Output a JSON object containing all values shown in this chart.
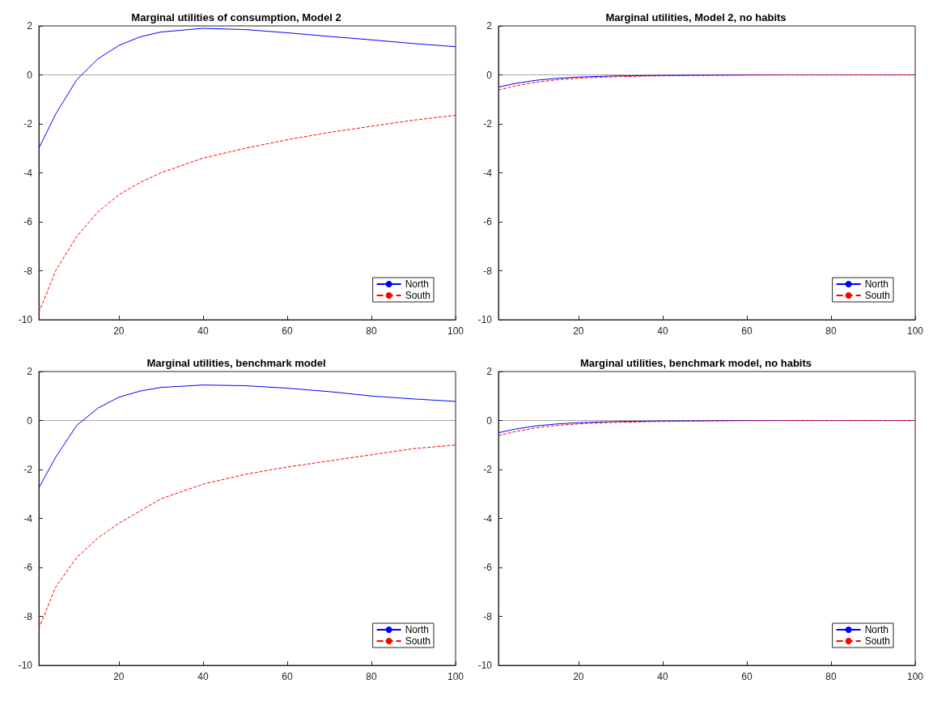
{
  "chart_data": [
    {
      "type": "line",
      "title": "Marginal utilities of consumption, Model 2",
      "x": [
        1,
        5,
        10,
        15,
        20,
        25,
        30,
        40,
        50,
        60,
        70,
        80,
        90,
        100
      ],
      "xlim": [
        1,
        100
      ],
      "xticks": [
        20,
        40,
        60,
        80,
        100
      ],
      "ylim": [
        -10,
        2
      ],
      "yticks": [
        -10,
        -8,
        -6,
        -4,
        -2,
        0,
        2
      ],
      "grid": false,
      "legend": "bottom right",
      "marker": "none",
      "ref_lines": [
        {
          "axis": "y",
          "value": 0,
          "line_style": "dotted",
          "color": "#000000"
        }
      ],
      "series": [
        {
          "name": "North",
          "color": "#0000ff",
          "line_style": "solid",
          "values": [
            -3,
            -1.6,
            -0.2,
            0.65,
            1.2,
            1.55,
            1.75,
            1.9,
            1.85,
            1.72,
            1.57,
            1.43,
            1.28,
            1.15
          ]
        },
        {
          "name": "South",
          "color": "#ff0000",
          "line_style": "dashed",
          "values": [
            -9.7,
            -8.0,
            -6.6,
            -5.6,
            -4.9,
            -4.4,
            -4.0,
            -3.4,
            -3.0,
            -2.65,
            -2.35,
            -2.1,
            -1.85,
            -1.65
          ]
        }
      ]
    },
    {
      "type": "line",
      "title": "Marginal utilities, Model 2, no habits",
      "x": [
        1,
        5,
        10,
        15,
        20,
        25,
        30,
        40,
        50,
        60,
        70,
        80,
        90,
        100
      ],
      "xlim": [
        1,
        100
      ],
      "xticks": [
        20,
        40,
        60,
        80,
        100
      ],
      "ylim": [
        -10,
        2
      ],
      "yticks": [
        -10,
        -8,
        -6,
        -4,
        -2,
        0,
        2
      ],
      "grid": false,
      "legend": "bottom right",
      "marker": "none",
      "ref_lines": [
        {
          "axis": "y",
          "value": 0,
          "line_style": "dotted",
          "color": "#000000"
        }
      ],
      "series": [
        {
          "name": "North",
          "color": "#0000ff",
          "line_style": "solid",
          "values": [
            -0.5,
            -0.35,
            -0.22,
            -0.14,
            -0.09,
            -0.06,
            -0.04,
            -0.02,
            -0.01,
            0,
            0,
            0,
            0,
            0
          ]
        },
        {
          "name": "South",
          "color": "#ff0000",
          "line_style": "dashed",
          "values": [
            -0.62,
            -0.45,
            -0.3,
            -0.2,
            -0.14,
            -0.1,
            -0.07,
            -0.04,
            -0.02,
            -0.01,
            0,
            0,
            0,
            0
          ]
        }
      ]
    },
    {
      "type": "line",
      "title": "Marginal utilities, benchmark model",
      "x": [
        1,
        5,
        10,
        15,
        20,
        25,
        30,
        40,
        50,
        60,
        70,
        80,
        90,
        100
      ],
      "xlim": [
        1,
        100
      ],
      "xticks": [
        20,
        40,
        60,
        80,
        100
      ],
      "ylim": [
        -10,
        2
      ],
      "yticks": [
        -10,
        -8,
        -6,
        -4,
        -2,
        0,
        2
      ],
      "grid": false,
      "legend": "bottom right",
      "marker": "none",
      "ref_lines": [
        {
          "axis": "y",
          "value": 0,
          "line_style": "dotted",
          "color": "#000000"
        }
      ],
      "series": [
        {
          "name": "North",
          "color": "#0000ff",
          "line_style": "solid",
          "values": [
            -2.75,
            -1.5,
            -0.2,
            0.5,
            0.95,
            1.2,
            1.35,
            1.45,
            1.42,
            1.32,
            1.18,
            1.0,
            0.88,
            0.78
          ]
        },
        {
          "name": "South",
          "color": "#ff0000",
          "line_style": "dashed",
          "values": [
            -8.5,
            -6.8,
            -5.6,
            -4.8,
            -4.2,
            -3.7,
            -3.2,
            -2.6,
            -2.2,
            -1.9,
            -1.65,
            -1.4,
            -1.15,
            -1.0
          ]
        }
      ]
    },
    {
      "type": "line",
      "title": "Marginal utilities, benchmark model, no habits",
      "x": [
        1,
        5,
        10,
        15,
        20,
        25,
        30,
        40,
        50,
        60,
        70,
        80,
        90,
        100
      ],
      "xlim": [
        1,
        100
      ],
      "xticks": [
        20,
        40,
        60,
        80,
        100
      ],
      "ylim": [
        -10,
        2
      ],
      "yticks": [
        -10,
        -8,
        -6,
        -4,
        -2,
        0,
        2
      ],
      "grid": false,
      "legend": "bottom right",
      "marker": "none",
      "ref_lines": [
        {
          "axis": "y",
          "value": 0,
          "line_style": "dotted",
          "color": "#000000"
        }
      ],
      "series": [
        {
          "name": "North",
          "color": "#0000ff",
          "line_style": "solid",
          "values": [
            -0.5,
            -0.35,
            -0.22,
            -0.14,
            -0.09,
            -0.06,
            -0.04,
            -0.02,
            -0.01,
            0,
            0,
            0,
            0,
            0
          ]
        },
        {
          "name": "South",
          "color": "#ff0000",
          "line_style": "dashed",
          "values": [
            -0.62,
            -0.45,
            -0.3,
            -0.2,
            -0.14,
            -0.1,
            -0.07,
            -0.04,
            -0.02,
            -0.01,
            0,
            0,
            0,
            0
          ]
        }
      ]
    }
  ]
}
